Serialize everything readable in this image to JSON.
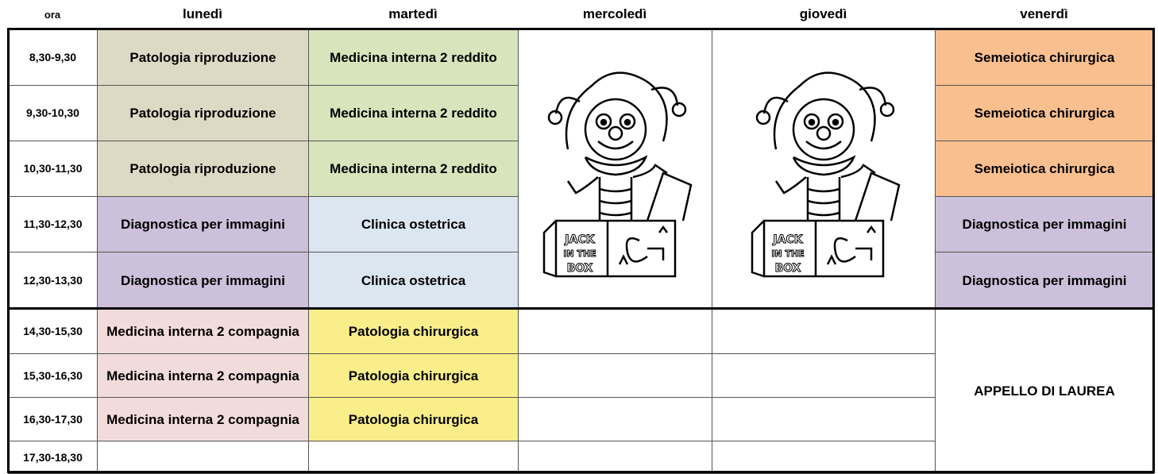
{
  "header": {
    "time_label": "ora",
    "days": [
      "lunedì",
      "martedì",
      "mercoledì",
      "giovedì",
      "venerdì"
    ]
  },
  "times": [
    "8,30-9,30",
    "9,30-10,30",
    "10,30-11,30",
    "11,30-12,30",
    "12,30-13,30",
    "14,30-15,30",
    "15,30-16,30",
    "16,30-17,30",
    "17,30-18,30"
  ],
  "schedule": [
    [
      {
        "text": "Patologia riproduzione",
        "color": "#ddd9c4"
      },
      {
        "text": "Patologia riproduzione",
        "color": "#ddd9c4"
      },
      {
        "text": "Patologia riproduzione",
        "color": "#ddd9c4"
      },
      {
        "text": "Diagnostica per immagini",
        "color": "#ccc0da"
      },
      {
        "text": "Diagnostica per immagini",
        "color": "#ccc0da"
      },
      {
        "text": "Medicina interna 2 compagnia",
        "color": "#f2dcdb"
      },
      {
        "text": "Medicina interna 2 compagnia",
        "color": "#f2dcdb"
      },
      {
        "text": "Medicina interna 2 compagnia",
        "color": "#f2dcdb"
      }
    ],
    [
      {
        "text": "Medicina interna 2 reddito",
        "color": "#d8e4bc"
      },
      {
        "text": "Medicina interna 2 reddito",
        "color": "#d8e4bc"
      },
      {
        "text": "Medicina interna 2 reddito",
        "color": "#d8e4bc"
      },
      {
        "text": "Clinica ostetrica",
        "color": "#dce6f1"
      },
      {
        "text": "Clinica ostetrica",
        "color": "#dce6f1"
      },
      {
        "text": "Patologia chirurgica",
        "color": "#f9ee8a"
      },
      {
        "text": "Patologia chirurgica",
        "color": "#f9ee8a"
      },
      {
        "text": "Patologia chirurgica",
        "color": "#f9ee8a"
      }
    ],
    [],
    [],
    [
      {
        "text": "Semeiotica chirurgica",
        "color": "#fabf8f"
      },
      {
        "text": "Semeiotica chirurgica",
        "color": "#fabf8f"
      },
      {
        "text": "Semeiotica chirurgica",
        "color": "#fabf8f"
      },
      {
        "text": "Diagnostica per immagini",
        "color": "#ccc0da"
      },
      {
        "text": "Diagnostica per immagini",
        "color": "#ccc0da"
      },
      {
        "text": "APPELLO DI LAUREA",
        "color": "#ffffff"
      }
    ]
  ]
}
